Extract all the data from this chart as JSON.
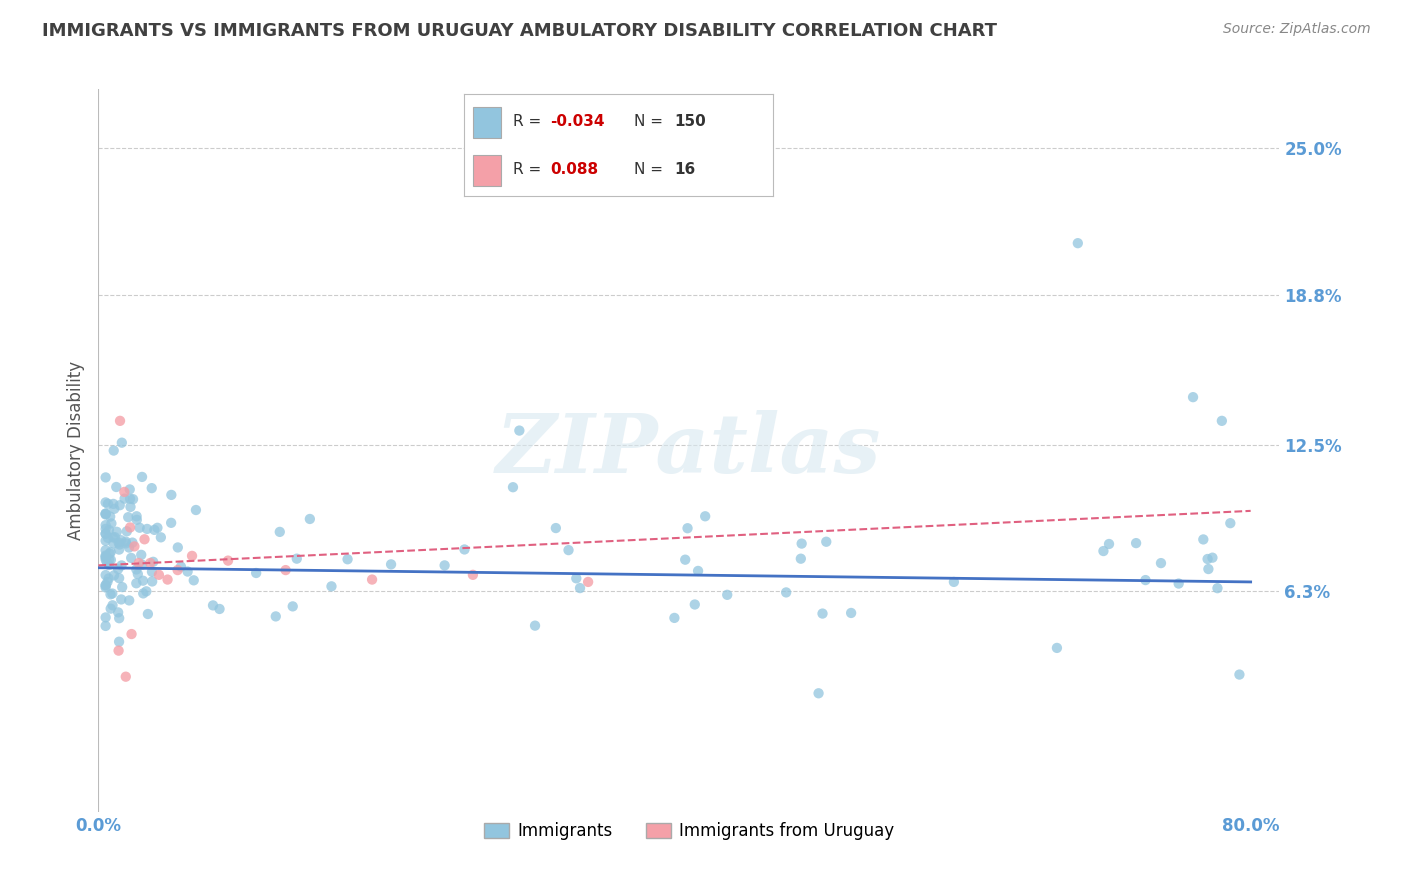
{
  "title": "IMMIGRANTS VS IMMIGRANTS FROM URUGUAY AMBULATORY DISABILITY CORRELATION CHART",
  "source": "Source: ZipAtlas.com",
  "ylabel": "Ambulatory Disability",
  "watermark": "ZIPatlas",
  "legend": {
    "series1_label": "Immigrants",
    "series2_label": "Immigrants from Uruguay",
    "R1": "-0.034",
    "N1": "150",
    "R2": "0.088",
    "N2": "16"
  },
  "ytick_labels": [
    "6.3%",
    "12.5%",
    "18.8%",
    "25.0%"
  ],
  "ytick_values": [
    0.063,
    0.125,
    0.188,
    0.25
  ],
  "xlim": [
    0.0,
    0.82
  ],
  "ylim": [
    -0.03,
    0.275
  ],
  "color_immigrants": "#92C5DE",
  "color_uruguay": "#F4A0A8",
  "trendline_immigrants": "#4472C4",
  "trendline_uruguay": "#E06080",
  "background_color": "#ffffff",
  "grid_color": "#cccccc",
  "tick_color": "#5B9BD5",
  "title_color": "#404040"
}
